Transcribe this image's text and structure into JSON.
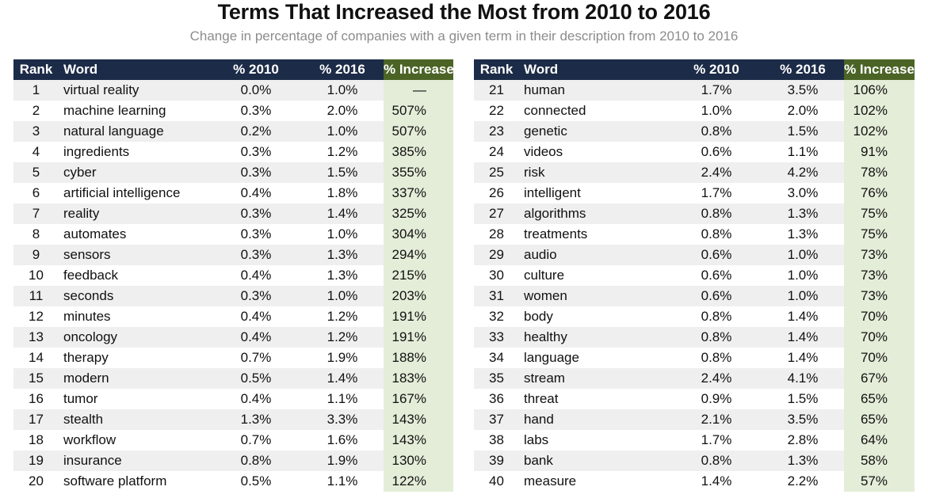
{
  "title": "Terms That Increased the Most from 2010 to 2016",
  "subtitle": "Change in percentage of companies with a given term in their description from 2010 to 2016",
  "columns": [
    "Rank",
    "Word",
    "% 2010",
    "% 2016",
    "% Increase"
  ],
  "colors": {
    "header_bg": "#1c2b47",
    "increase_header_bg": "#4b6426",
    "increase_cell_bg": "#e4edd8",
    "stripe_bg": "#efefef"
  },
  "chart_data": {
    "type": "table",
    "title": "Terms That Increased the Most from 2010 to 2016",
    "subtitle": "Change in percentage of companies with a given term in their description from 2010 to 2016",
    "columns": [
      "Rank",
      "Word",
      "% 2010",
      "% 2016",
      "% Increase"
    ],
    "rows": [
      [
        "1",
        "virtual reality",
        "0.0%",
        "1.0%",
        "—"
      ],
      [
        "2",
        "machine learning",
        "0.3%",
        "2.0%",
        "507%"
      ],
      [
        "3",
        "natural language",
        "0.2%",
        "1.0%",
        "507%"
      ],
      [
        "4",
        "ingredients",
        "0.3%",
        "1.2%",
        "385%"
      ],
      [
        "5",
        "cyber",
        "0.3%",
        "1.5%",
        "355%"
      ],
      [
        "6",
        "artificial intelligence",
        "0.4%",
        "1.8%",
        "337%"
      ],
      [
        "7",
        "reality",
        "0.3%",
        "1.4%",
        "325%"
      ],
      [
        "8",
        "automates",
        "0.3%",
        "1.0%",
        "304%"
      ],
      [
        "9",
        "sensors",
        "0.3%",
        "1.3%",
        "294%"
      ],
      [
        "10",
        "feedback",
        "0.4%",
        "1.3%",
        "215%"
      ],
      [
        "11",
        "seconds",
        "0.3%",
        "1.0%",
        "203%"
      ],
      [
        "12",
        "minutes",
        "0.4%",
        "1.2%",
        "191%"
      ],
      [
        "13",
        "oncology",
        "0.4%",
        "1.2%",
        "191%"
      ],
      [
        "14",
        "therapy",
        "0.7%",
        "1.9%",
        "188%"
      ],
      [
        "15",
        "modern",
        "0.5%",
        "1.4%",
        "183%"
      ],
      [
        "16",
        "tumor",
        "0.4%",
        "1.1%",
        "167%"
      ],
      [
        "17",
        "stealth",
        "1.3%",
        "3.3%",
        "143%"
      ],
      [
        "18",
        "workflow",
        "0.7%",
        "1.6%",
        "143%"
      ],
      [
        "19",
        "insurance",
        "0.8%",
        "1.9%",
        "130%"
      ],
      [
        "20",
        "software platform",
        "0.5%",
        "1.1%",
        "122%"
      ],
      [
        "21",
        "human",
        "1.7%",
        "3.5%",
        "106%"
      ],
      [
        "22",
        "connected",
        "1.0%",
        "2.0%",
        "102%"
      ],
      [
        "23",
        "genetic",
        "0.8%",
        "1.5%",
        "102%"
      ],
      [
        "24",
        "videos",
        "0.6%",
        "1.1%",
        "91%"
      ],
      [
        "25",
        "risk",
        "2.4%",
        "4.2%",
        "78%"
      ],
      [
        "26",
        "intelligent",
        "1.7%",
        "3.0%",
        "76%"
      ],
      [
        "27",
        "algorithms",
        "0.8%",
        "1.3%",
        "75%"
      ],
      [
        "28",
        "treatments",
        "0.8%",
        "1.3%",
        "75%"
      ],
      [
        "29",
        "audio",
        "0.6%",
        "1.0%",
        "73%"
      ],
      [
        "30",
        "culture",
        "0.6%",
        "1.0%",
        "73%"
      ],
      [
        "31",
        "women",
        "0.6%",
        "1.0%",
        "73%"
      ],
      [
        "32",
        "body",
        "0.8%",
        "1.4%",
        "70%"
      ],
      [
        "33",
        "healthy",
        "0.8%",
        "1.4%",
        "70%"
      ],
      [
        "34",
        "language",
        "0.8%",
        "1.4%",
        "70%"
      ],
      [
        "35",
        "stream",
        "2.4%",
        "4.1%",
        "67%"
      ],
      [
        "36",
        "threat",
        "0.9%",
        "1.5%",
        "65%"
      ],
      [
        "37",
        "hand",
        "2.1%",
        "3.5%",
        "65%"
      ],
      [
        "38",
        "labs",
        "1.7%",
        "2.8%",
        "64%"
      ],
      [
        "39",
        "bank",
        "0.8%",
        "1.3%",
        "58%"
      ],
      [
        "40",
        "measure",
        "1.4%",
        "2.2%",
        "57%"
      ]
    ]
  }
}
